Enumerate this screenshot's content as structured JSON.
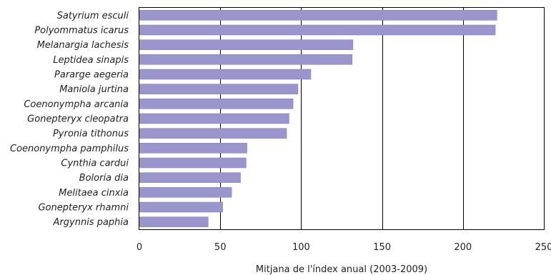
{
  "chart_data": {
    "type": "bar",
    "orientation": "horizontal",
    "categories": [
      "Satyrium esculi",
      "Polyommatus icarus",
      "Melanargia lachesis",
      "Leptidea sinapis",
      "Pararge aegeria",
      "Maniola jurtina",
      "Coenonympha arcania",
      "Gonepteryx cleopatra",
      "Pyronia tithonus",
      "Coenonympha pamphilus",
      "Cynthia cardui",
      "Boloria dia",
      "Melitaea cinxia",
      "Gonepteryx rhamni",
      "Argynnis paphia"
    ],
    "values": [
      221,
      220,
      132,
      131.5,
      106,
      98,
      95,
      92.5,
      91,
      66.5,
      66,
      62.5,
      57,
      51.5,
      42.5
    ],
    "xlabel": "Mitjana de l'índex anual (2003-2009)",
    "ylabel": "",
    "xlim": [
      0,
      250
    ],
    "xticks": [
      "0",
      "50",
      "100",
      "150",
      "200",
      "250"
    ],
    "grid": "vertical",
    "bar_color": "#9a96cd",
    "bar_border_color": "#7d79b3",
    "grid_color": "#000000"
  }
}
